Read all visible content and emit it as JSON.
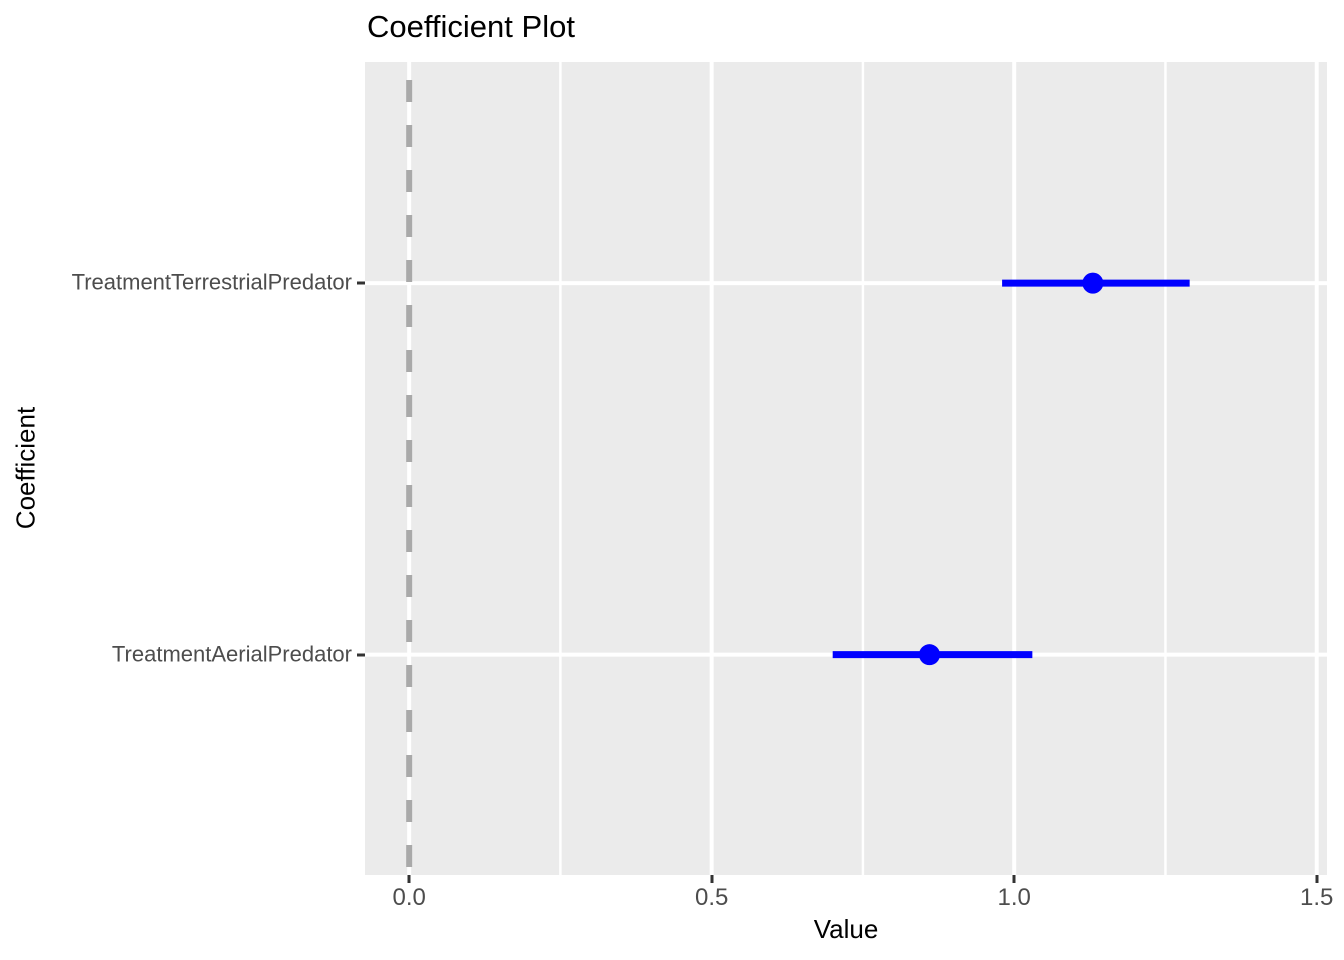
{
  "chart_data": {
    "type": "pointrange",
    "title": "Coefficient Plot",
    "xlabel": "Value",
    "ylabel": "Coefficient",
    "xlim": [
      -0.073,
      1.517
    ],
    "x_ticks": [
      0.0,
      0.5,
      1.0,
      1.5
    ],
    "x_tick_labels": [
      "0.0",
      "0.5",
      "1.0",
      "1.5"
    ],
    "x_minor_ticks": [
      0.25,
      0.75,
      1.25
    ],
    "grid": true,
    "legend": "none",
    "vline": {
      "x": 0.0,
      "style": "dashed",
      "color": "#A9A9A9"
    },
    "points": [
      {
        "label": "TreatmentTerrestrialPredator",
        "estimate": 1.13,
        "ci_low": 0.98,
        "ci_high": 1.29,
        "y_frac": 0.272
      },
      {
        "label": "TreatmentAerialPredator",
        "estimate": 0.86,
        "ci_low": 0.7,
        "ci_high": 1.03,
        "y_frac": 0.729
      }
    ],
    "colors": {
      "point": "#0000FF",
      "range": "#0000FF",
      "panel_bg": "#EBEBEB",
      "grid_major": "#FFFFFF",
      "grid_minor": "#FFFFFF",
      "tick_label": "#4D4D4D",
      "tick_mark": "#333333",
      "text": "#000000"
    }
  }
}
